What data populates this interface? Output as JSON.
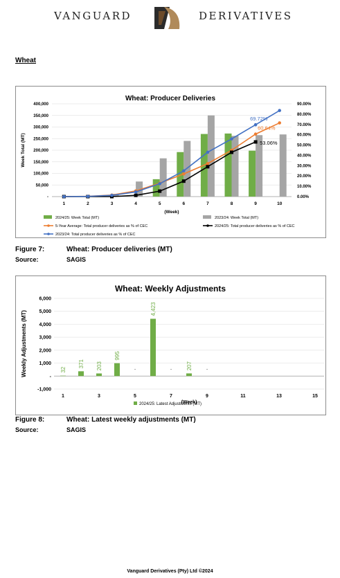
{
  "header": {
    "brand_left": "VANGUARD",
    "brand_right": "DERIVATIVES"
  },
  "section_title": "Wheat",
  "figure7": {
    "label": "Figure 7:",
    "title": "Wheat: Producer deliveries (MT)",
    "source_label": "Source:",
    "source": "SAGIS"
  },
  "figure8": {
    "label": "Figure 8:",
    "title": "Wheat: Latest weekly adjustments (MT)",
    "source_label": "Source:",
    "source": "SAGIS"
  },
  "footer": "Vanguard Derivatives (Pty) Ltd ©2024",
  "chart_data": [
    {
      "type": "bar",
      "title": "Wheat: Producer Deliveries",
      "xlabel": "(Week)",
      "ylabel": "Week Total (MT)",
      "categories": [
        "1",
        "2",
        "3",
        "4",
        "5",
        "6",
        "7",
        "8",
        "9",
        "10"
      ],
      "ylim": [
        0,
        400000
      ],
      "yticks": [
        "-",
        "50,000",
        "100,000",
        "150,000",
        "200,000",
        "250,000",
        "300,000",
        "350,000",
        "400,000"
      ],
      "y2lim": [
        0,
        90
      ],
      "y2ticks": [
        "0.00%",
        "10.00%",
        "20.00%",
        "30.00%",
        "40.00%",
        "50.00%",
        "60.00%",
        "70.00%",
        "80.00%",
        "90.00%"
      ],
      "series": [
        {
          "name": "2024/25: Week Total (MT)",
          "kind": "bar",
          "axis": "left",
          "color": "#70ad47",
          "values": [
            0,
            0,
            0,
            0,
            75000,
            192000,
            270000,
            272000,
            198000,
            null
          ]
        },
        {
          "name": "2023/24: Week Total (MT)",
          "kind": "bar",
          "axis": "left",
          "color": "#a5a5a5",
          "values": [
            0,
            2000,
            12000,
            65000,
            165000,
            240000,
            350000,
            262000,
            265000,
            268000
          ]
        },
        {
          "name": "5-Year Average: Total producer deliveries as % of CEC",
          "kind": "line",
          "axis": "right",
          "color": "#ed7d31",
          "values": [
            0,
            0.3,
            1.5,
            5.5,
            13,
            22,
            32,
            45,
            60.64,
            71.5
          ]
        },
        {
          "name": "2024/25: Total producer deliveries as % of CEC",
          "kind": "line",
          "axis": "right",
          "color": "#000000",
          "values": [
            0,
            0,
            0,
            1.2,
            5.3,
            15,
            29,
            43,
            53.06,
            null
          ]
        },
        {
          "name": "2023/24: Total producer deliveries as % of CEC",
          "kind": "line",
          "axis": "right",
          "color": "#4472c4",
          "values": [
            0,
            0.2,
            1.2,
            4.5,
            12.5,
            25,
            43,
            56,
            69.72,
            83.5
          ]
        }
      ],
      "annotations": [
        "69.72%",
        "60.64%",
        "53.06%"
      ],
      "legend_placement": "bottom",
      "grid": true
    },
    {
      "type": "bar",
      "title": "Wheat: Weekly Adjustments",
      "xlabel": "(Week)",
      "ylabel": "Weekly Adjustments (MT)",
      "categories": [
        "1",
        "2",
        "3",
        "4",
        "5",
        "6",
        "7",
        "8",
        "9",
        "10",
        "11",
        "12",
        "13",
        "14",
        "15"
      ],
      "xticks_shown": [
        "1",
        "3",
        "5",
        "7",
        "9",
        "11",
        "13",
        "15"
      ],
      "ylim": [
        -1000,
        6000
      ],
      "yticks": [
        "-1,000",
        "-",
        "1,000",
        "2,000",
        "3,000",
        "4,000",
        "5,000",
        "6,000"
      ],
      "series": [
        {
          "name": "2024/25: Latest Adjustments (MT)",
          "color": "#70ad47",
          "values": [
            32,
            371,
            203,
            995,
            0,
            4423,
            0,
            207,
            0,
            null,
            null,
            null,
            null,
            null,
            null
          ]
        }
      ],
      "data_labels": [
        "32",
        "371",
        "203",
        "995",
        "-",
        "4,423",
        "-",
        "207",
        "-"
      ],
      "legend_placement": "bottom",
      "grid": true
    }
  ]
}
